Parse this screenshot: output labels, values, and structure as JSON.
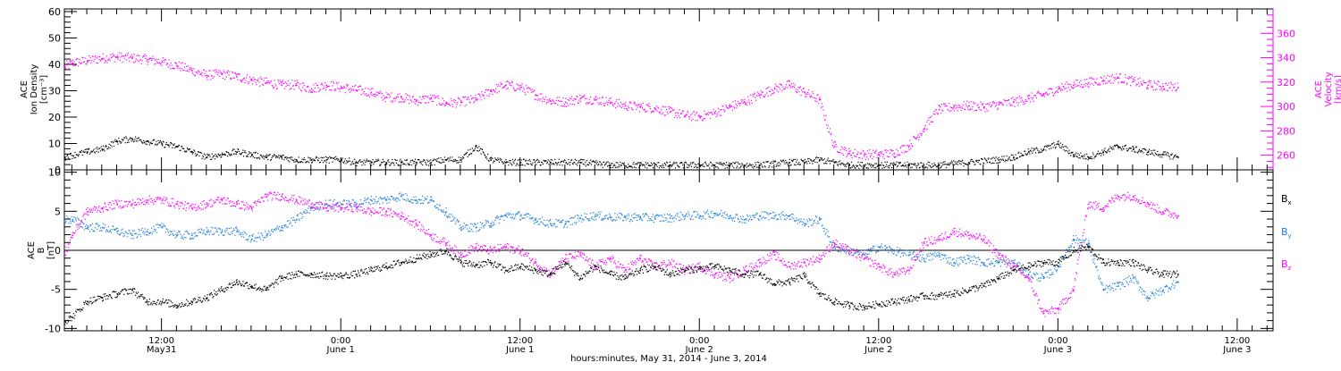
{
  "colors": {
    "axis": "#000000",
    "density": "#000000",
    "velocity": "#ff00ff",
    "bx": "#000000",
    "by": "#1f7fe0",
    "bz": "#ff00ff"
  },
  "x_axis": {
    "title": "hours:minutes, May 31, 2014 - June  3, 2014",
    "ticks": [
      {
        "hour": 12,
        "time": "12:00",
        "date": "May31"
      },
      {
        "hour": 24,
        "time": "0:00",
        "date": "June 1"
      },
      {
        "hour": 36,
        "time": "12:00",
        "date": "June 1"
      },
      {
        "hour": 48,
        "time": "0:00",
        "date": "June 2"
      },
      {
        "hour": 60,
        "time": "12:00",
        "date": "June 2"
      },
      {
        "hour": 72,
        "time": "0:00",
        "date": "June 3"
      },
      {
        "hour": 84,
        "time": "12:00",
        "date": "June 3"
      }
    ],
    "range_hours": [
      5.5,
      86.4
    ]
  },
  "chart_data": [
    {
      "type": "scatter",
      "panel": "top",
      "left_axis": {
        "label_lines": [
          "ACE",
          "Ion Density",
          "[cm⁻³]"
        ],
        "range": [
          0,
          61
        ],
        "ticks": [
          0,
          10,
          20,
          30,
          40,
          50,
          60
        ]
      },
      "right_axis": {
        "label_lines": [
          "ACE",
          "Velocity",
          "[km/s]"
        ],
        "range": [
          248,
          380
        ],
        "ticks": [
          260,
          280,
          300,
          320,
          340,
          360
        ]
      },
      "series": [
        {
          "color": "#000000",
          "axis": "left",
          "x_hours": [
            5.5,
            7,
            8,
            9,
            10,
            11,
            12,
            13,
            14,
            15,
            16,
            17,
            18,
            19,
            20,
            21,
            22,
            23,
            24,
            25,
            26,
            27,
            28,
            29,
            30,
            31,
            32,
            33,
            34,
            35,
            36,
            38,
            40,
            42,
            44,
            46,
            48,
            50,
            52,
            54,
            55,
            56,
            57,
            58,
            60,
            62,
            64,
            66,
            68,
            69,
            70,
            71,
            72,
            73,
            74,
            75,
            76,
            77,
            78,
            79,
            80
          ],
          "values": [
            5,
            7,
            8,
            11,
            12,
            11,
            10,
            9,
            7,
            5,
            6,
            7,
            6,
            5,
            5,
            4,
            4,
            4,
            4,
            3,
            3,
            3,
            3,
            3,
            3,
            4,
            4,
            9,
            4,
            3,
            3,
            3,
            3,
            2,
            2,
            2,
            2,
            2,
            2,
            3,
            3,
            4,
            3,
            2,
            2,
            2,
            2,
            3,
            4,
            5,
            7,
            8,
            10,
            6,
            5,
            7,
            9,
            8,
            7,
            6,
            5
          ]
        },
        {
          "color": "#ff00ff",
          "axis": "right",
          "x_hours": [
            5.5,
            6,
            7,
            8,
            9,
            10,
            11,
            12,
            13,
            14,
            15,
            16,
            17,
            18,
            19,
            20,
            21,
            22,
            23,
            24,
            25,
            26,
            27,
            28,
            29,
            30,
            31,
            32,
            33,
            34,
            35,
            36,
            37,
            38,
            39,
            40,
            41,
            42,
            43,
            44,
            45,
            46,
            47,
            48,
            49,
            50,
            51,
            52,
            53,
            54,
            55,
            56,
            57,
            58,
            59,
            60,
            61,
            62,
            63,
            64,
            65,
            66,
            67,
            68,
            69,
            70,
            71,
            72,
            73,
            74,
            75,
            76,
            77,
            78,
            79,
            80
          ],
          "values": [
            333,
            336,
            338,
            340,
            341,
            340,
            339,
            337,
            334,
            330,
            326,
            327,
            325,
            322,
            320,
            318,
            318,
            315,
            318,
            316,
            314,
            312,
            308,
            308,
            305,
            307,
            303,
            304,
            306,
            313,
            318,
            316,
            310,
            305,
            304,
            307,
            306,
            304,
            301,
            300,
            299,
            296,
            293,
            292,
            295,
            300,
            304,
            310,
            315,
            318,
            312,
            306,
            268,
            262,
            261,
            261,
            262,
            268,
            282,
            298,
            300,
            301,
            300,
            302,
            304,
            307,
            310,
            315,
            318,
            320,
            322,
            324,
            321,
            318,
            317,
            316
          ]
        }
      ]
    },
    {
      "type": "scatter",
      "panel": "bottom",
      "left_axis": {
        "label_lines": [
          "ACE",
          "B",
          "[nT]"
        ],
        "range": [
          -10.3,
          10.3
        ],
        "ticks": [
          -10,
          -5,
          0,
          5,
          10
        ]
      },
      "legend": {
        "placement": "right",
        "items": [
          {
            "label": "B",
            "subscript": "x",
            "color": "#000000"
          },
          {
            "label": "B",
            "subscript": "y",
            "color": "#1f7fe0"
          },
          {
            "label": "B",
            "subscript": "z",
            "color": "#ff00ff"
          }
        ]
      },
      "series": [
        {
          "color": "#000000",
          "x_hours": [
            5.5,
            6,
            7,
            8,
            9,
            10,
            11,
            12,
            13,
            14,
            15,
            16,
            17,
            18,
            19,
            20,
            21,
            22,
            23,
            24,
            25,
            26,
            27,
            28,
            29,
            30,
            31,
            32,
            33,
            34,
            35,
            36,
            37,
            38,
            39,
            40,
            41,
            42,
            43,
            44,
            45,
            46,
            47,
            48,
            49,
            50,
            51,
            52,
            53,
            54,
            55,
            56,
            57,
            58,
            59,
            60,
            61,
            62,
            63,
            64,
            65,
            66,
            67,
            68,
            69,
            70,
            71,
            72,
            73,
            74,
            75,
            76,
            77,
            78,
            79,
            80
          ],
          "values": [
            -9,
            -8.5,
            -6.5,
            -6,
            -5.5,
            -5,
            -6.5,
            -6.5,
            -7,
            -6.5,
            -6,
            -5,
            -4,
            -4.5,
            -5,
            -3.5,
            -3,
            -3,
            -3.2,
            -3.2,
            -3,
            -2.5,
            -2,
            -1.5,
            -1,
            -0.5,
            0,
            -1.5,
            -1.8,
            -1.5,
            -2.5,
            -2,
            -2.5,
            -3,
            -1.5,
            -3.5,
            -2,
            -3,
            -3.5,
            -2.5,
            -2,
            -3,
            -2.5,
            -2.3,
            -2,
            -2.5,
            -3,
            -3,
            -4.2,
            -4,
            -3.2,
            -5.5,
            -6.5,
            -7,
            -7.2,
            -6.8,
            -6.5,
            -6.2,
            -5.8,
            -5.8,
            -5.5,
            -5,
            -4.5,
            -3.5,
            -2.5,
            -2,
            -1.5,
            -1.5,
            0,
            0.5,
            -1.5,
            -1.5,
            -1.5,
            -2.5,
            -3,
            -3
          ]
        },
        {
          "color": "#1f7fe0",
          "x_hours": [
            5.5,
            6,
            7,
            8,
            9,
            10,
            11,
            12,
            13,
            14,
            15,
            16,
            17,
            18,
            19,
            20,
            21,
            22,
            23,
            24,
            25,
            26,
            27,
            28,
            29,
            30,
            31,
            32,
            33,
            34,
            35,
            36,
            37,
            38,
            39,
            40,
            41,
            42,
            43,
            44,
            45,
            46,
            47,
            48,
            49,
            50,
            51,
            52,
            53,
            54,
            55,
            56,
            57,
            58,
            59,
            60,
            61,
            62,
            63,
            64,
            65,
            66,
            67,
            68,
            69,
            70,
            71,
            72,
            73,
            74,
            75,
            76,
            77,
            78,
            79,
            80
          ],
          "values": [
            4,
            4,
            3,
            3,
            2.5,
            2,
            2.5,
            3,
            2,
            2,
            2.5,
            2.5,
            2.5,
            1.5,
            2,
            3,
            4,
            5.5,
            6,
            6,
            6,
            6.5,
            6.5,
            7,
            6.5,
            6.5,
            5,
            3,
            3,
            3.5,
            4.5,
            4.5,
            4,
            3.5,
            3.5,
            4.2,
            4.5,
            4.3,
            4.3,
            4.3,
            4.2,
            4.2,
            4.5,
            4.5,
            4.8,
            4.5,
            4,
            4.5,
            4.5,
            4.5,
            3.5,
            4,
            0.5,
            0,
            -0.5,
            0.5,
            0,
            -0.5,
            -1,
            -0.5,
            -1.5,
            -1,
            -1.5,
            -1.5,
            -1.5,
            -3,
            -3.5,
            -2,
            1.5,
            1,
            -5,
            -4.5,
            -3.5,
            -6,
            -5,
            -4
          ]
        },
        {
          "color": "#ff00ff",
          "x_hours": [
            5.5,
            6,
            7,
            8,
            9,
            10,
            11,
            12,
            13,
            14,
            15,
            16,
            17,
            18,
            19,
            20,
            21,
            22,
            23,
            24,
            25,
            26,
            27,
            28,
            29,
            30,
            31,
            32,
            33,
            34,
            35,
            36,
            37,
            38,
            39,
            40,
            41,
            42,
            43,
            44,
            45,
            46,
            47,
            48,
            49,
            50,
            51,
            52,
            53,
            54,
            55,
            56,
            57,
            58,
            59,
            60,
            61,
            62,
            63,
            64,
            65,
            66,
            67,
            68,
            69,
            70,
            71,
            72,
            73,
            74,
            75,
            76,
            77,
            78,
            79,
            80
          ],
          "values": [
            -0.5,
            2,
            5,
            5.5,
            6,
            6,
            6.5,
            6.5,
            6,
            5.5,
            6,
            6.5,
            6,
            5.5,
            7,
            7,
            6.5,
            6,
            5.5,
            5.5,
            5.5,
            5,
            5,
            4.5,
            3.5,
            2,
            1,
            -0.5,
            0.5,
            0,
            0.5,
            0,
            -1.5,
            -3,
            -1,
            -0.5,
            -2,
            -1,
            -2.5,
            -1,
            -2,
            -1.5,
            -2.5,
            -2,
            -3,
            -3.5,
            -2.5,
            -1.5,
            -0.5,
            -2,
            -1.5,
            -1,
            1,
            0,
            -1,
            -2,
            -3,
            -2.5,
            1,
            1.5,
            2.5,
            2,
            1.5,
            -0.5,
            -2,
            -3.5,
            -8,
            -7.5,
            -5,
            6,
            5.5,
            7,
            7,
            6,
            5,
            4.5
          ]
        }
      ]
    }
  ]
}
